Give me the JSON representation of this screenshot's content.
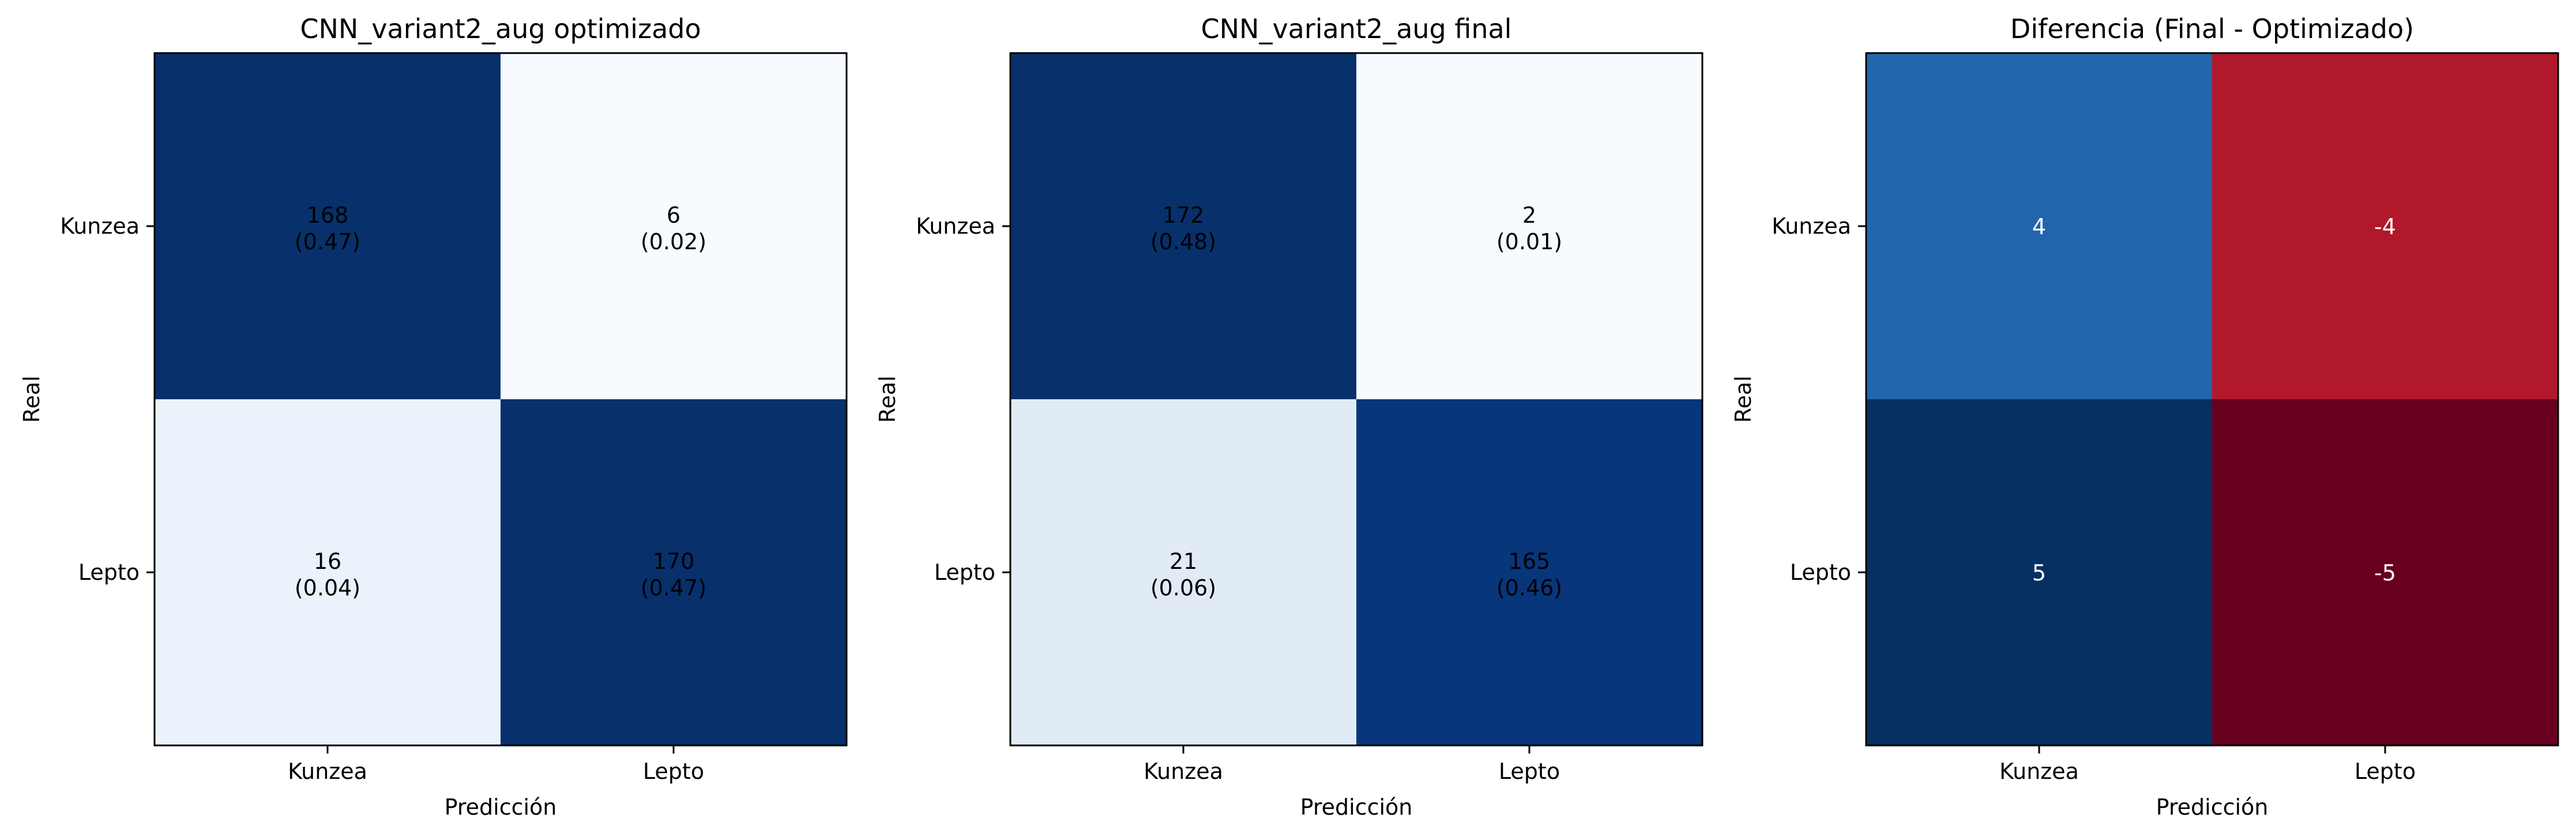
{
  "chart_data": [
    {
      "type": "heatmap",
      "title": "CNN_variant2_aug optimizado",
      "xlabel": "Predicción",
      "ylabel": "Real",
      "x_categories": [
        "Kunzea",
        "Lepto"
      ],
      "y_categories": [
        "Kunzea",
        "Lepto"
      ],
      "colormap": "Blues",
      "values": [
        [
          168,
          6
        ],
        [
          16,
          170
        ]
      ],
      "fractions": [
        [
          "(0.47)",
          "(0.02)"
        ],
        [
          "(0.04)",
          "(0.47)"
        ]
      ],
      "cell_colors": [
        [
          "#08306b",
          "#f7fbff"
        ],
        [
          "#eaf2fb",
          "#08306b"
        ]
      ],
      "text_colors": [
        [
          "#000000",
          "#000000"
        ],
        [
          "#000000",
          "#000000"
        ]
      ]
    },
    {
      "type": "heatmap",
      "title": "CNN_variant2_aug final",
      "xlabel": "Predicción",
      "ylabel": "Real",
      "x_categories": [
        "Kunzea",
        "Lepto"
      ],
      "y_categories": [
        "Kunzea",
        "Lepto"
      ],
      "colormap": "Blues",
      "values": [
        [
          172,
          2
        ],
        [
          21,
          165
        ]
      ],
      "fractions": [
        [
          "(0.48)",
          "(0.01)"
        ],
        [
          "(0.06)",
          "(0.46)"
        ]
      ],
      "cell_colors": [
        [
          "#08306b",
          "#f7fbff"
        ],
        [
          "#e1ebf6",
          "#08367a"
        ]
      ],
      "text_colors": [
        [
          "#000000",
          "#000000"
        ],
        [
          "#000000",
          "#000000"
        ]
      ]
    },
    {
      "type": "heatmap",
      "title": "Diferencia (Final - Optimizado)",
      "xlabel": "Predicción",
      "ylabel": "Real",
      "x_categories": [
        "Kunzea",
        "Lepto"
      ],
      "y_categories": [
        "Kunzea",
        "Lepto"
      ],
      "colormap": "RdBu",
      "values": [
        [
          4,
          -4
        ],
        [
          5,
          -5
        ]
      ],
      "fractions": [
        [
          "",
          ""
        ],
        [
          "",
          ""
        ]
      ],
      "cell_colors": [
        [
          "#2166ac",
          "#b2182b"
        ],
        [
          "#053061",
          "#67001f"
        ]
      ],
      "text_colors": [
        [
          "#ffffff",
          "#ffffff"
        ],
        [
          "#ffffff",
          "#ffffff"
        ]
      ]
    }
  ]
}
